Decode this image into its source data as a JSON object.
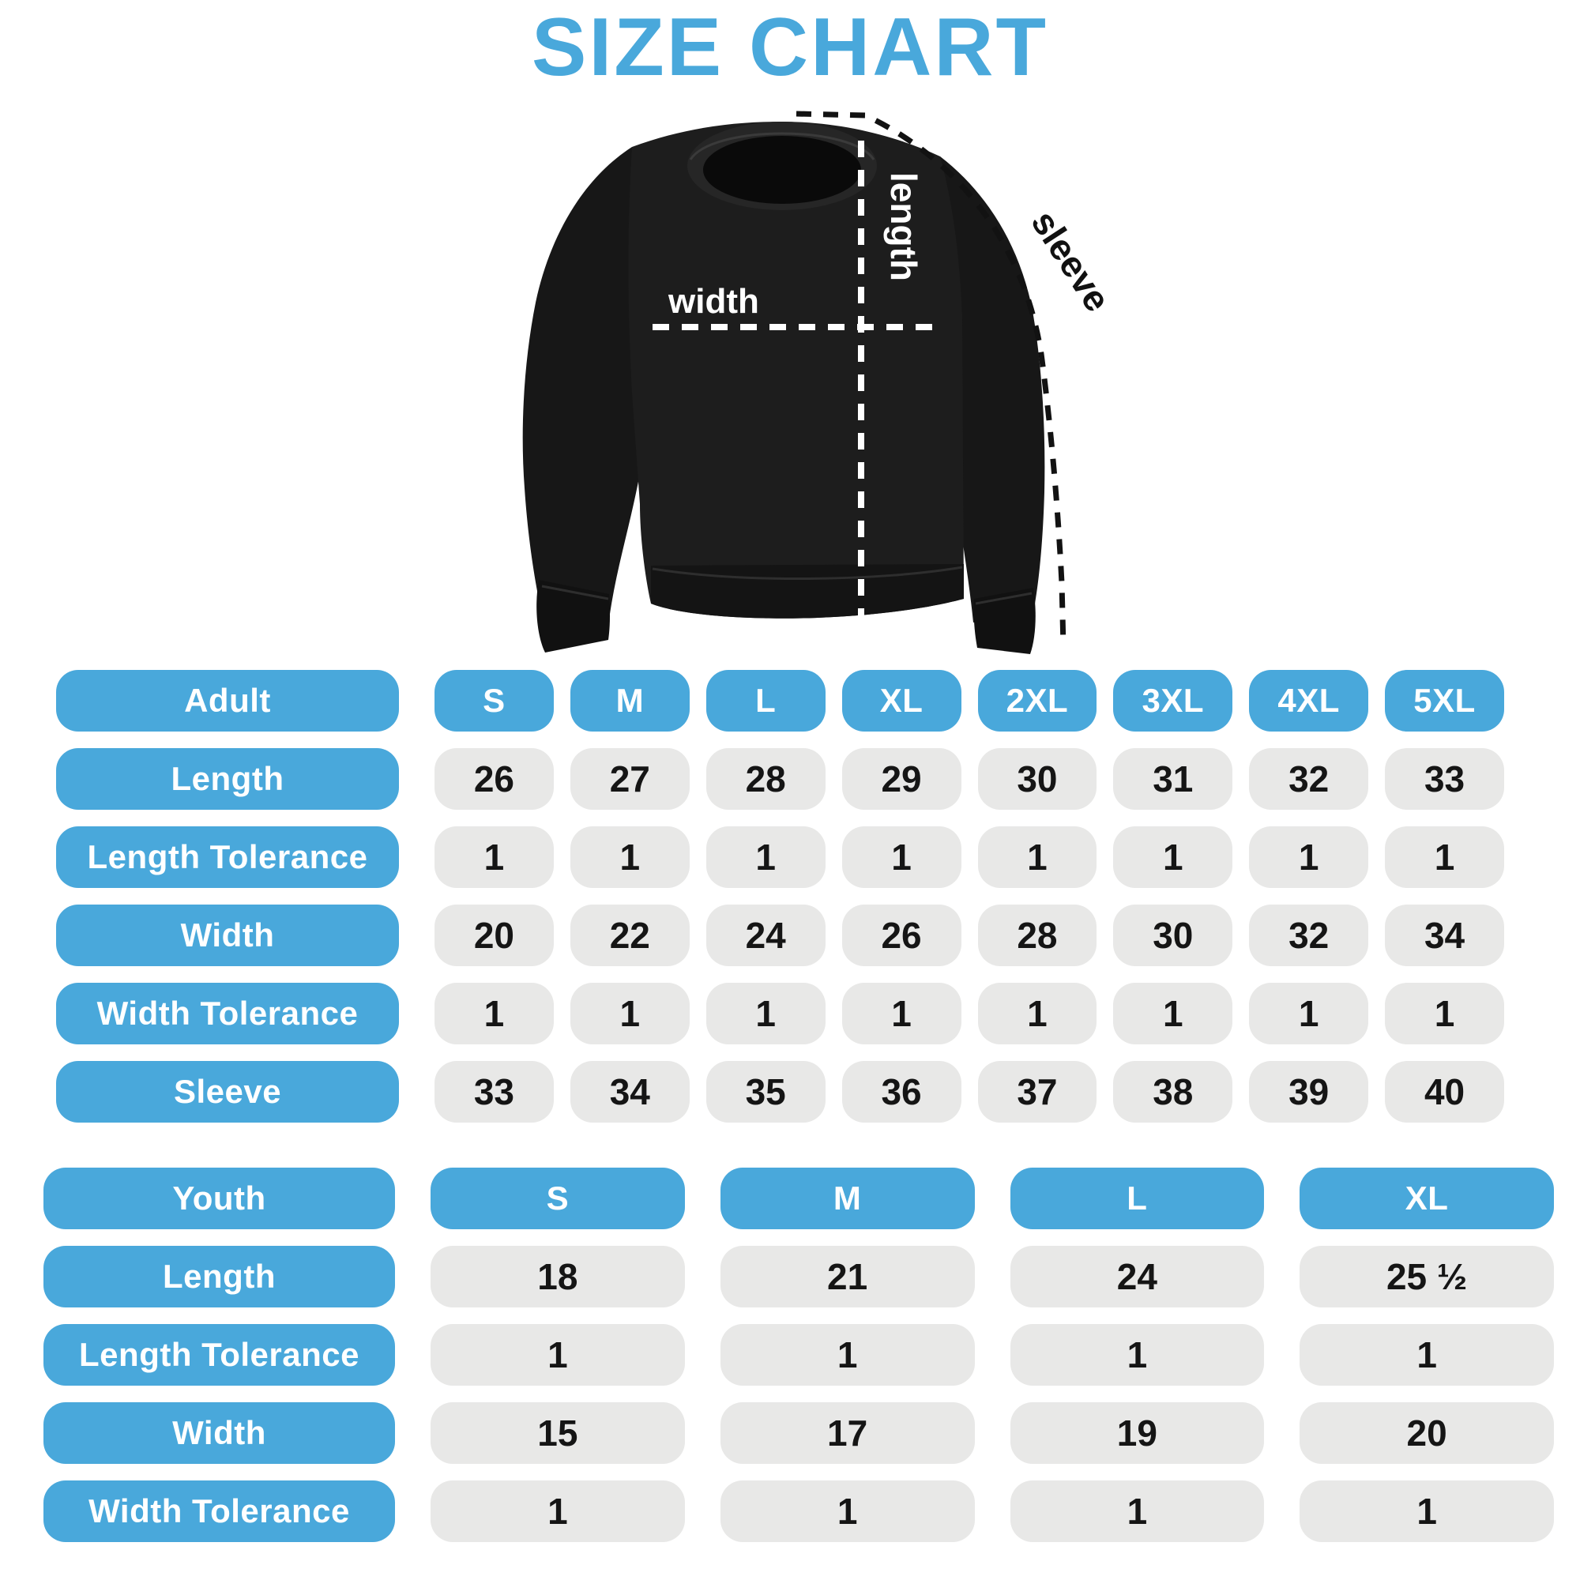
{
  "title": "SIZE CHART",
  "colors": {
    "accent": "#49A8DB",
    "cell_bg": "#E8E8E7",
    "cell_text": "#151515",
    "header_text": "#FFFFFF",
    "garment": "#1D1D1D",
    "background": "#FFFFFF"
  },
  "diagram": {
    "garment": "crewneck-sweatshirt",
    "labels": {
      "length": "length",
      "width": "width",
      "sleeve": "sleeve"
    }
  },
  "tables": [
    {
      "id": "adult",
      "header_label": "Adult",
      "sizes": [
        "S",
        "M",
        "L",
        "XL",
        "2XL",
        "3XL",
        "4XL",
        "5XL"
      ],
      "rows": [
        {
          "label": "Length",
          "values": [
            "26",
            "27",
            "28",
            "29",
            "30",
            "31",
            "32",
            "33"
          ]
        },
        {
          "label": "Length Tolerance",
          "values": [
            "1",
            "1",
            "1",
            "1",
            "1",
            "1",
            "1",
            "1"
          ]
        },
        {
          "label": "Width",
          "values": [
            "20",
            "22",
            "24",
            "26",
            "28",
            "30",
            "32",
            "34"
          ]
        },
        {
          "label": "Width Tolerance",
          "values": [
            "1",
            "1",
            "1",
            "1",
            "1",
            "1",
            "1",
            "1"
          ]
        },
        {
          "label": "Sleeve",
          "values": [
            "33",
            "34",
            "35",
            "36",
            "37",
            "38",
            "39",
            "40"
          ]
        }
      ]
    },
    {
      "id": "youth",
      "header_label": "Youth",
      "sizes": [
        "S",
        "M",
        "L",
        "XL"
      ],
      "rows": [
        {
          "label": "Length",
          "values": [
            "18",
            "21",
            "24",
            "25 ½"
          ]
        },
        {
          "label": "Length Tolerance",
          "values": [
            "1",
            "1",
            "1",
            "1"
          ]
        },
        {
          "label": "Width",
          "values": [
            "15",
            "17",
            "19",
            "20"
          ]
        },
        {
          "label": "Width Tolerance",
          "values": [
            "1",
            "1",
            "1",
            "1"
          ]
        }
      ]
    }
  ],
  "chart_data": [
    {
      "type": "table",
      "title": "Adult size chart (inches)",
      "columns": [
        "Adult",
        "S",
        "M",
        "L",
        "XL",
        "2XL",
        "3XL",
        "4XL",
        "5XL"
      ],
      "rows": [
        [
          "Length",
          26,
          27,
          28,
          29,
          30,
          31,
          32,
          33
        ],
        [
          "Length Tolerance",
          1,
          1,
          1,
          1,
          1,
          1,
          1,
          1
        ],
        [
          "Width",
          20,
          22,
          24,
          26,
          28,
          30,
          32,
          34
        ],
        [
          "Width Tolerance",
          1,
          1,
          1,
          1,
          1,
          1,
          1,
          1
        ],
        [
          "Sleeve",
          33,
          34,
          35,
          36,
          37,
          38,
          39,
          40
        ]
      ]
    },
    {
      "type": "table",
      "title": "Youth size chart (inches)",
      "columns": [
        "Youth",
        "S",
        "M",
        "L",
        "XL"
      ],
      "rows": [
        [
          "Length",
          18,
          21,
          24,
          25.5
        ],
        [
          "Length Tolerance",
          1,
          1,
          1,
          1
        ],
        [
          "Width",
          15,
          17,
          19,
          20
        ],
        [
          "Width Tolerance",
          1,
          1,
          1,
          1
        ]
      ]
    }
  ]
}
